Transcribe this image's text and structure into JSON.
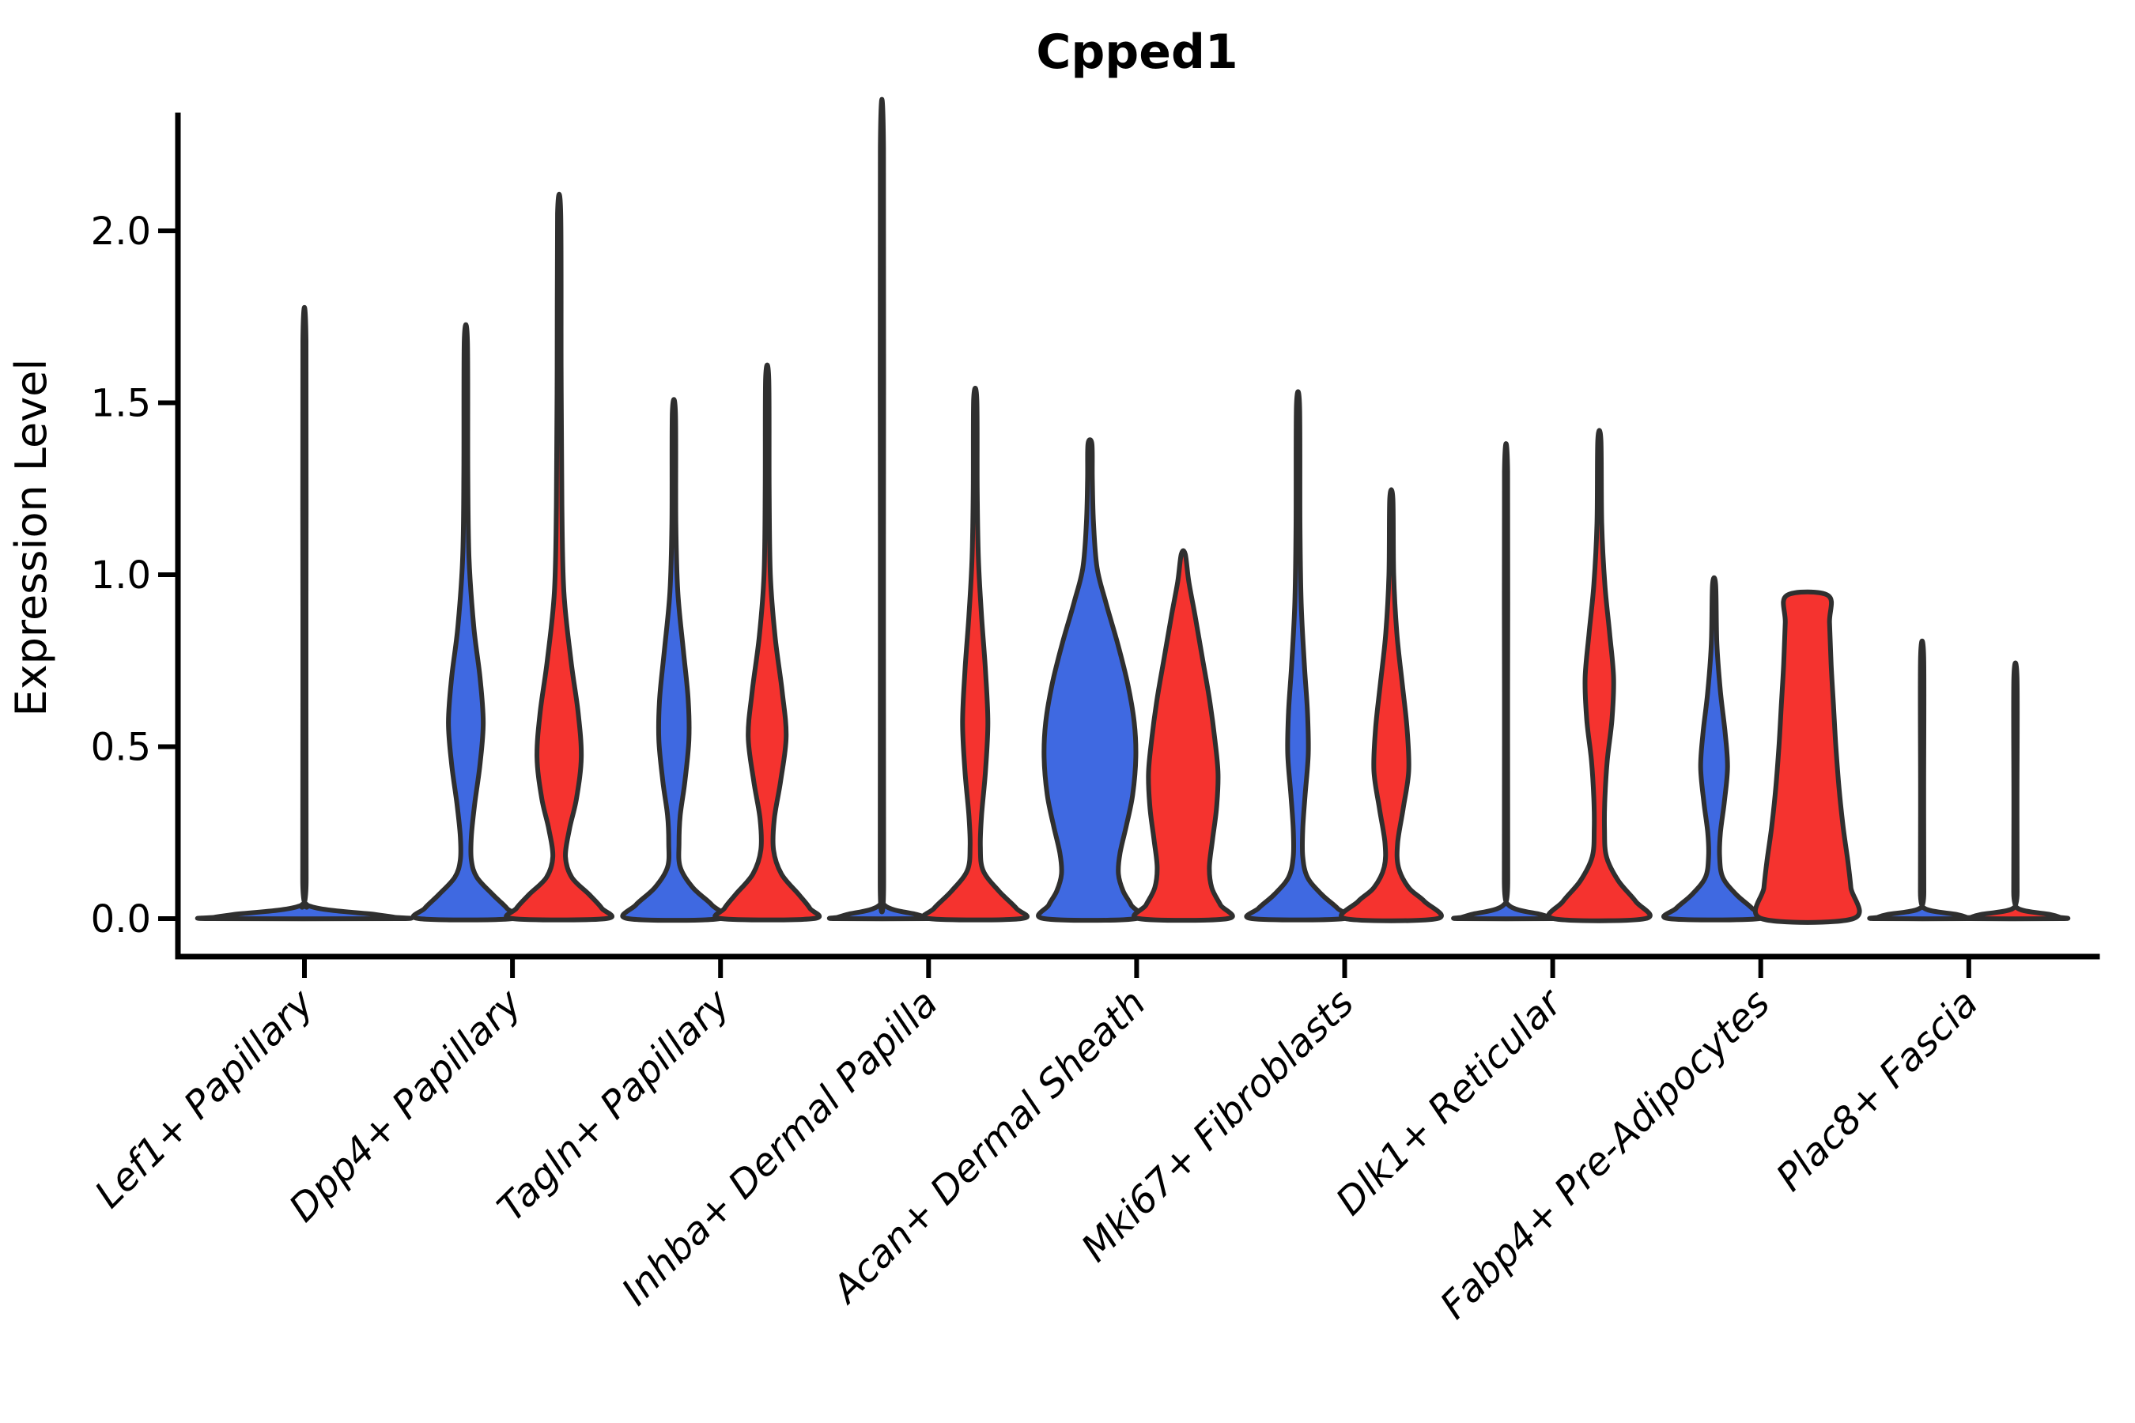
{
  "title": "Cpped1",
  "axes": {
    "ylabel": "Expression Level",
    "ytick_labels": [
      "0.0",
      "0.5",
      "1.0",
      "1.5",
      "2.0"
    ]
  },
  "colors": {
    "background": "#ffffff",
    "axis": "#000000",
    "violin_outline": "#2f2f2f",
    "blue_fill": "#3f69e1",
    "red_fill": "#f5332f"
  },
  "chart_data": {
    "type": "violin",
    "title": "Cpped1",
    "xlabel": "",
    "ylabel": "Expression Level",
    "ylim": [
      -0.11,
      2.35
    ],
    "yticks": [
      0,
      0.5,
      1.0,
      1.5,
      2.0
    ],
    "grid": false,
    "legend": "none",
    "split_colors": {
      "blue": "#3f69e1",
      "red": "#f5332f"
    },
    "categories": [
      "Lef1+ Papillary",
      "Dpp4+ Papillary",
      "Tagln+ Papillary",
      "Inhba+ Dermal Papilla",
      "Acan+ Dermal Sheath",
      "Mki67+ Fibroblasts",
      "Dlk1+ Reticular",
      "Fabp4+ Pre-Adipocytes",
      "Plac8+ Fascia"
    ],
    "groups": [
      {
        "category": "Lef1+ Papillary",
        "violins": [
          {
            "slot": "full",
            "color": "blue",
            "max": 1.68,
            "profile": [
              [
                1.68,
                2
              ],
              [
                0.9,
                2
              ],
              [
                0.12,
                2.2
              ],
              [
                0.04,
                3
              ],
              [
                0.012,
                90
              ],
              [
                0.004,
                114
              ],
              [
                0,
                118
              ]
            ]
          }
        ]
      },
      {
        "category": "Dpp4+ Papillary",
        "violins": [
          {
            "slot": "left",
            "color": "blue",
            "max": 1.68,
            "profile": [
              [
                1.68,
                2
              ],
              [
                1.3,
                2.5
              ],
              [
                1.05,
                4
              ],
              [
                0.85,
                10
              ],
              [
                0.7,
                18
              ],
              [
                0.57,
                22
              ],
              [
                0.45,
                18
              ],
              [
                0.33,
                11
              ],
              [
                0.24,
                7
              ],
              [
                0.17,
                7
              ],
              [
                0.12,
                14
              ],
              [
                0.07,
                34
              ],
              [
                0.03,
                52
              ],
              [
                0,
                59
              ]
            ]
          },
          {
            "slot": "right",
            "color": "red",
            "max": 2.05,
            "profile": [
              [
                2.05,
                2
              ],
              [
                1.6,
                2.5
              ],
              [
                1.2,
                3.5
              ],
              [
                0.95,
                6
              ],
              [
                0.75,
                15
              ],
              [
                0.6,
                24
              ],
              [
                0.47,
                28
              ],
              [
                0.35,
                22
              ],
              [
                0.26,
                13
              ],
              [
                0.18,
                8
              ],
              [
                0.12,
                16
              ],
              [
                0.07,
                38
              ],
              [
                0.03,
                54
              ],
              [
                0,
                59
              ]
            ]
          }
        ]
      },
      {
        "category": "Tagln+ Papillary",
        "violins": [
          {
            "slot": "left",
            "color": "blue",
            "max": 1.47,
            "profile": [
              [
                1.47,
                2
              ],
              [
                1.15,
                2.5
              ],
              [
                0.95,
                5
              ],
              [
                0.78,
                12
              ],
              [
                0.64,
                18
              ],
              [
                0.52,
                19
              ],
              [
                0.4,
                14
              ],
              [
                0.3,
                8
              ],
              [
                0.22,
                6.5
              ],
              [
                0.15,
                8
              ],
              [
                0.09,
                24
              ],
              [
                0.04,
                48
              ],
              [
                0,
                58
              ]
            ]
          },
          {
            "slot": "right",
            "color": "red",
            "max": 1.57,
            "profile": [
              [
                1.57,
                2
              ],
              [
                1.25,
                2.5
              ],
              [
                1.0,
                4
              ],
              [
                0.82,
                10
              ],
              [
                0.66,
                19
              ],
              [
                0.53,
                24
              ],
              [
                0.4,
                17
              ],
              [
                0.29,
                9
              ],
              [
                0.2,
                8
              ],
              [
                0.13,
                18
              ],
              [
                0.07,
                40
              ],
              [
                0.03,
                54
              ],
              [
                0,
                58
              ]
            ]
          }
        ]
      },
      {
        "category": "Inhba+ Dermal Papilla",
        "violins": [
          {
            "slot": "left",
            "color": "blue",
            "max": 2.24,
            "profile": [
              [
                2.24,
                2
              ],
              [
                1.1,
                2
              ],
              [
                0.12,
                2.2
              ],
              [
                0.04,
                3
              ],
              [
                0.012,
                44
              ],
              [
                0.004,
                56
              ],
              [
                0,
                58
              ]
            ]
          },
          {
            "slot": "right",
            "color": "red",
            "max": 1.51,
            "profile": [
              [
                1.51,
                2
              ],
              [
                1.25,
                2.5
              ],
              [
                1.05,
                4
              ],
              [
                0.88,
                8
              ],
              [
                0.72,
                13
              ],
              [
                0.57,
                16
              ],
              [
                0.43,
                13
              ],
              [
                0.3,
                8
              ],
              [
                0.21,
                6.5
              ],
              [
                0.14,
                10
              ],
              [
                0.08,
                30
              ],
              [
                0.03,
                52
              ],
              [
                0,
                58
              ]
            ]
          }
        ]
      },
      {
        "category": "Acan+ Dermal Sheath",
        "violins": [
          {
            "slot": "left",
            "color": "blue",
            "max": 1.38,
            "profile": [
              [
                1.38,
                2.5
              ],
              [
                1.28,
                3
              ],
              [
                1.15,
                4.5
              ],
              [
                1.02,
                9
              ],
              [
                0.92,
                20
              ],
              [
                0.8,
                35
              ],
              [
                0.68,
                48
              ],
              [
                0.57,
                56
              ],
              [
                0.47,
                58
              ],
              [
                0.36,
                54
              ],
              [
                0.27,
                46
              ],
              [
                0.19,
                38
              ],
              [
                0.13,
                36
              ],
              [
                0.08,
                42
              ],
              [
                0.04,
                52
              ],
              [
                0,
                58
              ]
            ]
          },
          {
            "slot": "right",
            "color": "red",
            "max": 1.06,
            "profile": [
              [
                1.06,
                2.5
              ],
              [
                0.98,
                7
              ],
              [
                0.88,
                15
              ],
              [
                0.76,
                24
              ],
              [
                0.64,
                33
              ],
              [
                0.52,
                40
              ],
              [
                0.42,
                44
              ],
              [
                0.32,
                42
              ],
              [
                0.23,
                37
              ],
              [
                0.15,
                33
              ],
              [
                0.09,
                36
              ],
              [
                0.04,
                47
              ],
              [
                0,
                56
              ]
            ]
          }
        ]
      },
      {
        "category": "Mki67+ Fibroblasts",
        "violins": [
          {
            "slot": "left",
            "color": "blue",
            "max": 1.49,
            "profile": [
              [
                1.49,
                2
              ],
              [
                1.15,
                2.5
              ],
              [
                0.92,
                4
              ],
              [
                0.74,
                8
              ],
              [
                0.6,
                12
              ],
              [
                0.48,
                13
              ],
              [
                0.36,
                9
              ],
              [
                0.26,
                6
              ],
              [
                0.18,
                6
              ],
              [
                0.12,
                12
              ],
              [
                0.07,
                30
              ],
              [
                0.03,
                50
              ],
              [
                0,
                58
              ]
            ]
          },
          {
            "slot": "right",
            "color": "red",
            "max": 1.22,
            "profile": [
              [
                1.22,
                2
              ],
              [
                1.0,
                3
              ],
              [
                0.83,
                7
              ],
              [
                0.68,
                14
              ],
              [
                0.55,
                20
              ],
              [
                0.43,
                22
              ],
              [
                0.32,
                15
              ],
              [
                0.22,
                8
              ],
              [
                0.15,
                9
              ],
              [
                0.09,
                22
              ],
              [
                0.05,
                42
              ],
              [
                0,
                58
              ]
            ]
          }
        ]
      },
      {
        "category": "Dlk1+ Reticular",
        "violins": [
          {
            "slot": "left",
            "color": "blue",
            "max": 1.3,
            "profile": [
              [
                1.3,
                2
              ],
              [
                0.65,
                2
              ],
              [
                0.12,
                2.2
              ],
              [
                0.04,
                3
              ],
              [
                0.012,
                44
              ],
              [
                0.004,
                56
              ],
              [
                0,
                58
              ]
            ]
          },
          {
            "slot": "right",
            "color": "red",
            "max": 1.39,
            "profile": [
              [
                1.39,
                2
              ],
              [
                1.15,
                3
              ],
              [
                0.97,
                7
              ],
              [
                0.83,
                13
              ],
              [
                0.7,
                18
              ],
              [
                0.58,
                16
              ],
              [
                0.46,
                10
              ],
              [
                0.35,
                7
              ],
              [
                0.26,
                6.5
              ],
              [
                0.18,
                9
              ],
              [
                0.11,
                24
              ],
              [
                0.05,
                46
              ],
              [
                0,
                58
              ]
            ]
          }
        ]
      },
      {
        "category": "Fabp4+ Pre-Adipocytes",
        "violins": [
          {
            "slot": "left",
            "color": "blue",
            "max": 0.97,
            "profile": [
              [
                0.97,
                2
              ],
              [
                0.8,
                3.5
              ],
              [
                0.66,
                8
              ],
              [
                0.54,
                14
              ],
              [
                0.44,
                17
              ],
              [
                0.34,
                13
              ],
              [
                0.25,
                8
              ],
              [
                0.18,
                7
              ],
              [
                0.12,
                11
              ],
              [
                0.07,
                28
              ],
              [
                0.03,
                48
              ],
              [
                0,
                57
              ]
            ]
          },
          {
            "slot": "right",
            "color": "red",
            "max": 0.94,
            "profile": [
              [
                0.94,
                26
              ],
              [
                0.86,
                28
              ],
              [
                0.74,
                30
              ],
              [
                0.62,
                33
              ],
              [
                0.5,
                36
              ],
              [
                0.38,
                40
              ],
              [
                0.27,
                45
              ],
              [
                0.17,
                51
              ],
              [
                0.09,
                55
              ],
              [
                0,
                58
              ]
            ]
          }
        ]
      },
      {
        "category": "Plac8+ Fascia",
        "violins": [
          {
            "slot": "left",
            "color": "blue",
            "max": 0.76,
            "profile": [
              [
                0.76,
                2
              ],
              [
                0.38,
                2
              ],
              [
                0.08,
                2.2
              ],
              [
                0.03,
                3
              ],
              [
                0.012,
                44
              ],
              [
                0.004,
                56
              ],
              [
                0,
                58
              ]
            ]
          },
          {
            "slot": "right",
            "color": "red",
            "max": 0.7,
            "profile": [
              [
                0.7,
                2
              ],
              [
                0.35,
                2
              ],
              [
                0.08,
                2.2
              ],
              [
                0.03,
                3
              ],
              [
                0.012,
                44
              ],
              [
                0.004,
                56
              ],
              [
                0,
                58
              ]
            ]
          }
        ]
      }
    ]
  }
}
